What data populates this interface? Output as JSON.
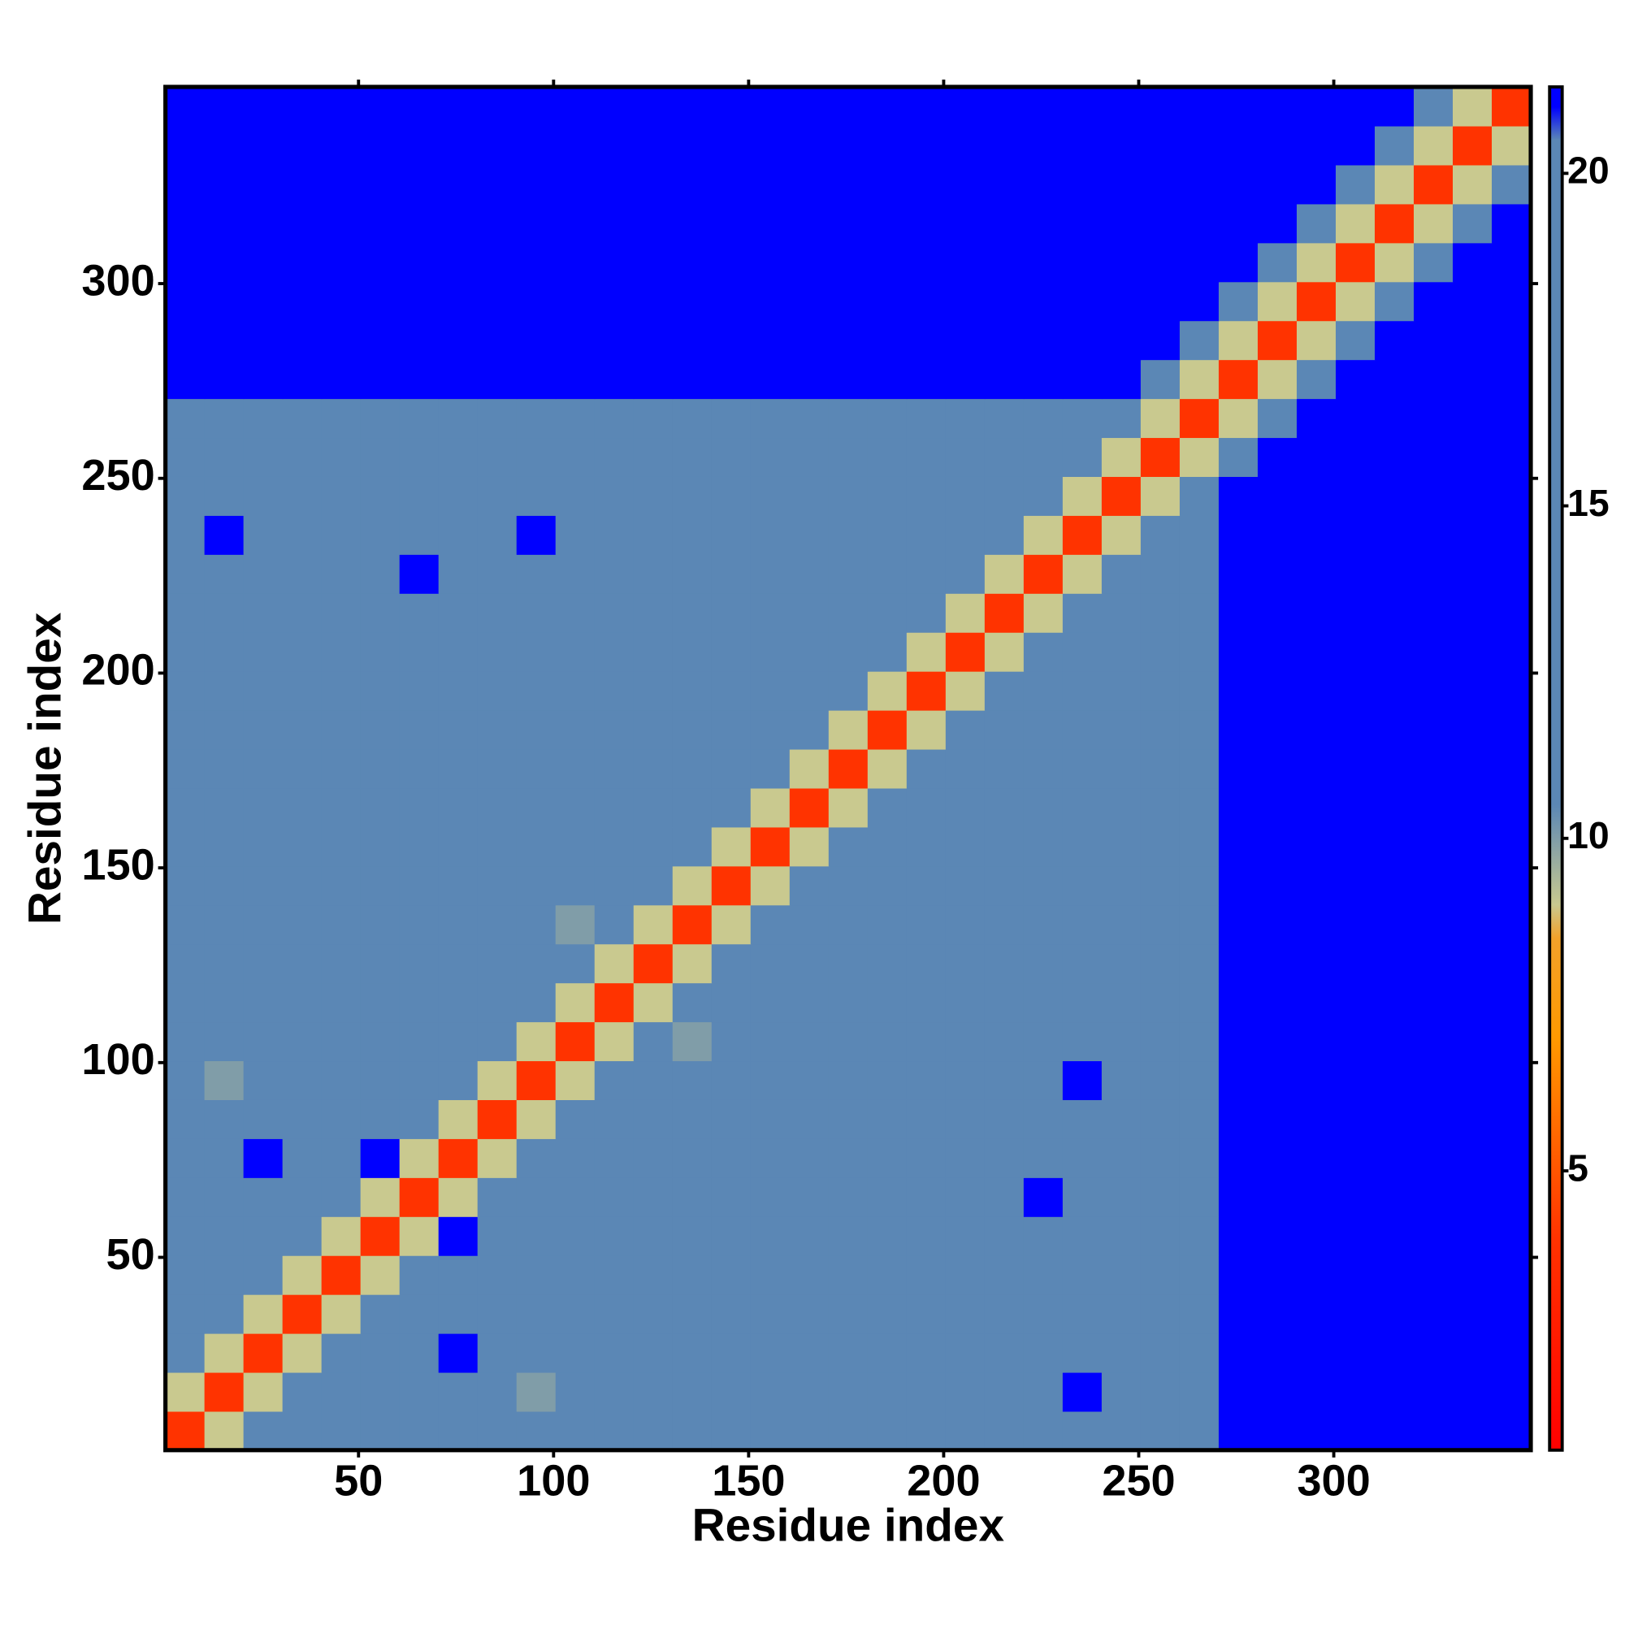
{
  "chart_data": {
    "type": "heatmap",
    "x_label": "Residue index",
    "y_label": "Residue index",
    "xbins": [
      0.5,
      10.5,
      20.5,
      30.5,
      40.5,
      50.5,
      60.5,
      70.5,
      80.5,
      90.5,
      100.5,
      110.5,
      120.5,
      130.5,
      140.5,
      150.5,
      160.5,
      170.5,
      180.5,
      190.5,
      200.5,
      210.5,
      220.5,
      230.5,
      240.5,
      250.5,
      260.5,
      270.5,
      280.5,
      290.5,
      300.5,
      310.5,
      320.5,
      330.5,
      340.5,
      350.5
    ],
    "ybins": [
      0.5,
      10.5,
      20.5,
      30.5,
      40.5,
      50.5,
      60.5,
      70.5,
      80.5,
      90.5,
      100.5,
      110.5,
      120.5,
      130.5,
      140.5,
      150.5,
      160.5,
      170.5,
      180.5,
      190.5,
      200.5,
      210.5,
      220.5,
      230.5,
      240.5,
      250.5,
      260.5,
      270.5,
      280.5,
      290.5,
      300.5,
      310.5,
      320.5,
      330.5,
      340.5,
      350.5
    ],
    "xlim": [
      0.5,
      350.5
    ],
    "ylim": [
      0.5,
      350.5
    ],
    "xticks": [
      50,
      100,
      150,
      200,
      250,
      300
    ],
    "yticks": [
      50,
      100,
      150,
      200,
      250,
      300
    ],
    "zlim": [
      0.8,
      21.3
    ],
    "zticks": [
      5,
      10,
      15,
      20
    ],
    "colorscale": [
      [
        0.8,
        "#ff0000"
      ],
      [
        4,
        "#ff3300"
      ],
      [
        7,
        "#ff9900"
      ],
      [
        8.5,
        "#f2a12a"
      ],
      [
        9,
        "#c9c98f"
      ],
      [
        10.5,
        "#5b87b5"
      ],
      [
        20.5,
        "#5b87b5"
      ],
      [
        21,
        "#0000ff"
      ],
      [
        21.3,
        "#0000ff"
      ]
    ],
    "z": [
      [
        4,
        9,
        13,
        15,
        15,
        15,
        15,
        15,
        15,
        15,
        15,
        15,
        15,
        15,
        15,
        15,
        15,
        15,
        15,
        15,
        15,
        15,
        15,
        15,
        15,
        15,
        15,
        22,
        22,
        22,
        22,
        22,
        22,
        22,
        22
      ],
      [
        9,
        4,
        9,
        13,
        15,
        15,
        15,
        15,
        15,
        10,
        15,
        15,
        15,
        15,
        15,
        15,
        15,
        15,
        15,
        15,
        15,
        15,
        15,
        21,
        15,
        15,
        15,
        22,
        22,
        22,
        22,
        22,
        22,
        22,
        22
      ],
      [
        13,
        9,
        4,
        9,
        13,
        15,
        15,
        21,
        15,
        15,
        15,
        15,
        15,
        15,
        15,
        15,
        15,
        15,
        15,
        15,
        15,
        15,
        15,
        15,
        15,
        12,
        15,
        22,
        22,
        22,
        22,
        22,
        22,
        22,
        22
      ],
      [
        15,
        13,
        9,
        4,
        9,
        13,
        15,
        15,
        15,
        11,
        15,
        15,
        15,
        15,
        15,
        15,
        15,
        15,
        15,
        15,
        15,
        15,
        15,
        15,
        15,
        15,
        15,
        22,
        22,
        22,
        22,
        22,
        22,
        22,
        22
      ],
      [
        15,
        15,
        13,
        9,
        4,
        9,
        13,
        15,
        15,
        15,
        15,
        15,
        15,
        15,
        15,
        15,
        15,
        15,
        15,
        15,
        15,
        15,
        15,
        15,
        15,
        15,
        15,
        22,
        22,
        22,
        22,
        22,
        22,
        22,
        22
      ],
      [
        15,
        15,
        15,
        13,
        9,
        4,
        9,
        21,
        15,
        15,
        15,
        15,
        15,
        15,
        15,
        15,
        15,
        15,
        15,
        15,
        15,
        15,
        15,
        15,
        15,
        12,
        15,
        22,
        22,
        22,
        22,
        22,
        22,
        22,
        22
      ],
      [
        15,
        15,
        15,
        15,
        13,
        9,
        4,
        9,
        13,
        15,
        15,
        15,
        15,
        15,
        15,
        15,
        15,
        15,
        15,
        15,
        15,
        15,
        21,
        15,
        15,
        15,
        15,
        22,
        22,
        22,
        22,
        22,
        22,
        22,
        22
      ],
      [
        15,
        15,
        21,
        15,
        15,
        21,
        9,
        4,
        9,
        13,
        15,
        15,
        15,
        15,
        15,
        15,
        15,
        15,
        15,
        15,
        15,
        15,
        15,
        15,
        15,
        15,
        15,
        22,
        22,
        22,
        22,
        22,
        22,
        22,
        22
      ],
      [
        15,
        15,
        15,
        15,
        15,
        15,
        13,
        9,
        4,
        9,
        13,
        15,
        15,
        15,
        15,
        15,
        15,
        15,
        15,
        15,
        15,
        15,
        15,
        15,
        15,
        15,
        15,
        22,
        22,
        22,
        22,
        22,
        22,
        22,
        22
      ],
      [
        15,
        10,
        15,
        11,
        15,
        15,
        15,
        13,
        9,
        4,
        9,
        13,
        15,
        15,
        15,
        15,
        15,
        15,
        15,
        15,
        15,
        15,
        15,
        21,
        15,
        15,
        15,
        22,
        22,
        22,
        22,
        22,
        22,
        22,
        22
      ],
      [
        15,
        15,
        15,
        15,
        15,
        15,
        15,
        15,
        13,
        9,
        4,
        9,
        13,
        10,
        15,
        15,
        15,
        15,
        15,
        15,
        15,
        15,
        15,
        15,
        15,
        15,
        15,
        22,
        22,
        22,
        22,
        22,
        22,
        22,
        22
      ],
      [
        15,
        15,
        15,
        15,
        15,
        15,
        15,
        15,
        15,
        13,
        9,
        4,
        9,
        13,
        15,
        15,
        15,
        15,
        15,
        15,
        15,
        15,
        15,
        15,
        15,
        15,
        15,
        22,
        22,
        22,
        22,
        22,
        22,
        22,
        22
      ],
      [
        15,
        15,
        15,
        15,
        15,
        15,
        15,
        15,
        15,
        15,
        13,
        9,
        4,
        9,
        13,
        15,
        15,
        11,
        15,
        15,
        15,
        15,
        15,
        15,
        15,
        15,
        15,
        22,
        22,
        22,
        22,
        22,
        22,
        22,
        22
      ],
      [
        15,
        15,
        15,
        15,
        15,
        15,
        15,
        15,
        15,
        15,
        10,
        13,
        9,
        4,
        9,
        13,
        15,
        15,
        15,
        15,
        15,
        15,
        15,
        15,
        15,
        15,
        15,
        22,
        22,
        22,
        22,
        22,
        22,
        22,
        22
      ],
      [
        15,
        15,
        15,
        15,
        15,
        15,
        15,
        15,
        15,
        15,
        15,
        15,
        13,
        9,
        4,
        9,
        13,
        15,
        15,
        15,
        15,
        15,
        15,
        15,
        15,
        15,
        15,
        22,
        22,
        22,
        22,
        22,
        22,
        22,
        22
      ],
      [
        15,
        15,
        15,
        15,
        15,
        15,
        15,
        15,
        15,
        15,
        15,
        15,
        15,
        13,
        9,
        4,
        9,
        13,
        15,
        15,
        15,
        15,
        15,
        15,
        15,
        15,
        15,
        22,
        22,
        22,
        22,
        22,
        22,
        22,
        22
      ],
      [
        15,
        15,
        15,
        15,
        15,
        15,
        15,
        15,
        15,
        15,
        15,
        15,
        15,
        15,
        13,
        9,
        4,
        9,
        13,
        15,
        15,
        15,
        15,
        15,
        15,
        15,
        15,
        22,
        22,
        22,
        22,
        22,
        22,
        22,
        22
      ],
      [
        15,
        15,
        15,
        15,
        15,
        15,
        15,
        15,
        15,
        15,
        15,
        15,
        11,
        15,
        15,
        13,
        9,
        4,
        9,
        13,
        15,
        15,
        15,
        15,
        15,
        15,
        15,
        22,
        22,
        22,
        22,
        22,
        22,
        22,
        22
      ],
      [
        15,
        15,
        15,
        15,
        15,
        15,
        15,
        15,
        15,
        15,
        15,
        15,
        15,
        15,
        15,
        15,
        13,
        9,
        4,
        9,
        13,
        15,
        15,
        15,
        15,
        15,
        15,
        22,
        22,
        22,
        22,
        22,
        22,
        22,
        22
      ],
      [
        15,
        15,
        15,
        15,
        15,
        15,
        15,
        15,
        15,
        15,
        15,
        15,
        15,
        15,
        15,
        15,
        15,
        13,
        9,
        4,
        9,
        13,
        15,
        15,
        15,
        15,
        15,
        22,
        22,
        22,
        22,
        22,
        22,
        22,
        22
      ],
      [
        15,
        15,
        15,
        15,
        15,
        15,
        15,
        15,
        15,
        15,
        15,
        15,
        15,
        15,
        15,
        15,
        15,
        15,
        13,
        9,
        4,
        9,
        13,
        15,
        15,
        15,
        15,
        22,
        22,
        22,
        22,
        22,
        22,
        22,
        22
      ],
      [
        15,
        15,
        15,
        15,
        15,
        15,
        15,
        15,
        15,
        15,
        15,
        15,
        15,
        15,
        15,
        15,
        15,
        15,
        15,
        13,
        9,
        4,
        9,
        13,
        15,
        15,
        15,
        22,
        22,
        22,
        22,
        22,
        22,
        22,
        22
      ],
      [
        15,
        15,
        15,
        15,
        15,
        15,
        21,
        15,
        15,
        15,
        15,
        15,
        15,
        15,
        15,
        15,
        15,
        15,
        15,
        15,
        13,
        9,
        4,
        9,
        13,
        15,
        15,
        22,
        22,
        22,
        22,
        22,
        22,
        22,
        22
      ],
      [
        15,
        21,
        15,
        15,
        15,
        15,
        15,
        15,
        15,
        21,
        15,
        15,
        15,
        15,
        15,
        15,
        15,
        15,
        15,
        15,
        15,
        13,
        9,
        4,
        9,
        13,
        15,
        22,
        22,
        22,
        22,
        22,
        22,
        22,
        22
      ],
      [
        15,
        15,
        15,
        15,
        15,
        15,
        15,
        15,
        15,
        15,
        15,
        15,
        15,
        15,
        15,
        15,
        15,
        15,
        15,
        15,
        15,
        15,
        13,
        9,
        4,
        9,
        13,
        22,
        22,
        22,
        22,
        22,
        22,
        22,
        22
      ],
      [
        15,
        15,
        12,
        15,
        15,
        12,
        15,
        15,
        15,
        15,
        15,
        15,
        15,
        15,
        15,
        15,
        15,
        15,
        15,
        15,
        15,
        15,
        15,
        13,
        9,
        4,
        9,
        15,
        22,
        22,
        22,
        22,
        22,
        22,
        22
      ],
      [
        15,
        15,
        15,
        15,
        15,
        15,
        15,
        15,
        15,
        15,
        15,
        15,
        15,
        15,
        15,
        15,
        15,
        15,
        15,
        15,
        15,
        15,
        15,
        15,
        13,
        9,
        4,
        9,
        15,
        22,
        22,
        22,
        22,
        22,
        22
      ],
      [
        22,
        22,
        22,
        22,
        22,
        22,
        22,
        22,
        22,
        22,
        22,
        22,
        22,
        22,
        22,
        22,
        22,
        22,
        22,
        22,
        22,
        22,
        22,
        22,
        22,
        15,
        9,
        4,
        9,
        15,
        22,
        22,
        22,
        22,
        22
      ],
      [
        22,
        22,
        22,
        22,
        22,
        22,
        22,
        22,
        22,
        22,
        22,
        22,
        22,
        22,
        22,
        22,
        22,
        22,
        22,
        22,
        22,
        22,
        22,
        22,
        22,
        22,
        15,
        9,
        4,
        9,
        15,
        22,
        22,
        22,
        22
      ],
      [
        22,
        22,
        22,
        22,
        22,
        22,
        22,
        22,
        22,
        22,
        22,
        22,
        22,
        22,
        22,
        22,
        22,
        22,
        22,
        22,
        22,
        22,
        22,
        22,
        22,
        22,
        22,
        15,
        9,
        4,
        9,
        15,
        22,
        22,
        22
      ],
      [
        22,
        22,
        22,
        22,
        22,
        22,
        22,
        22,
        22,
        22,
        22,
        22,
        22,
        22,
        22,
        22,
        22,
        22,
        22,
        22,
        22,
        22,
        22,
        22,
        22,
        22,
        22,
        22,
        15,
        9,
        4,
        9,
        15,
        22,
        22
      ],
      [
        22,
        22,
        22,
        22,
        22,
        22,
        22,
        22,
        22,
        22,
        22,
        22,
        22,
        22,
        22,
        22,
        22,
        22,
        22,
        22,
        22,
        22,
        22,
        22,
        22,
        22,
        22,
        22,
        22,
        15,
        9,
        4,
        9,
        15,
        22
      ],
      [
        22,
        22,
        22,
        22,
        22,
        22,
        22,
        22,
        22,
        22,
        22,
        22,
        22,
        22,
        22,
        22,
        22,
        22,
        22,
        22,
        22,
        22,
        22,
        22,
        22,
        22,
        22,
        22,
        22,
        22,
        15,
        9,
        4,
        9,
        15
      ],
      [
        22,
        22,
        22,
        22,
        22,
        22,
        22,
        22,
        22,
        22,
        22,
        22,
        22,
        22,
        22,
        22,
        22,
        22,
        22,
        22,
        22,
        22,
        22,
        22,
        22,
        22,
        22,
        22,
        22,
        22,
        22,
        15,
        9,
        4,
        9
      ],
      [
        22,
        22,
        22,
        22,
        22,
        22,
        22,
        22,
        22,
        22,
        22,
        22,
        22,
        22,
        22,
        22,
        22,
        22,
        22,
        22,
        22,
        22,
        22,
        22,
        22,
        22,
        22,
        22,
        22,
        22,
        22,
        22,
        15,
        9,
        4
      ]
    ]
  }
}
